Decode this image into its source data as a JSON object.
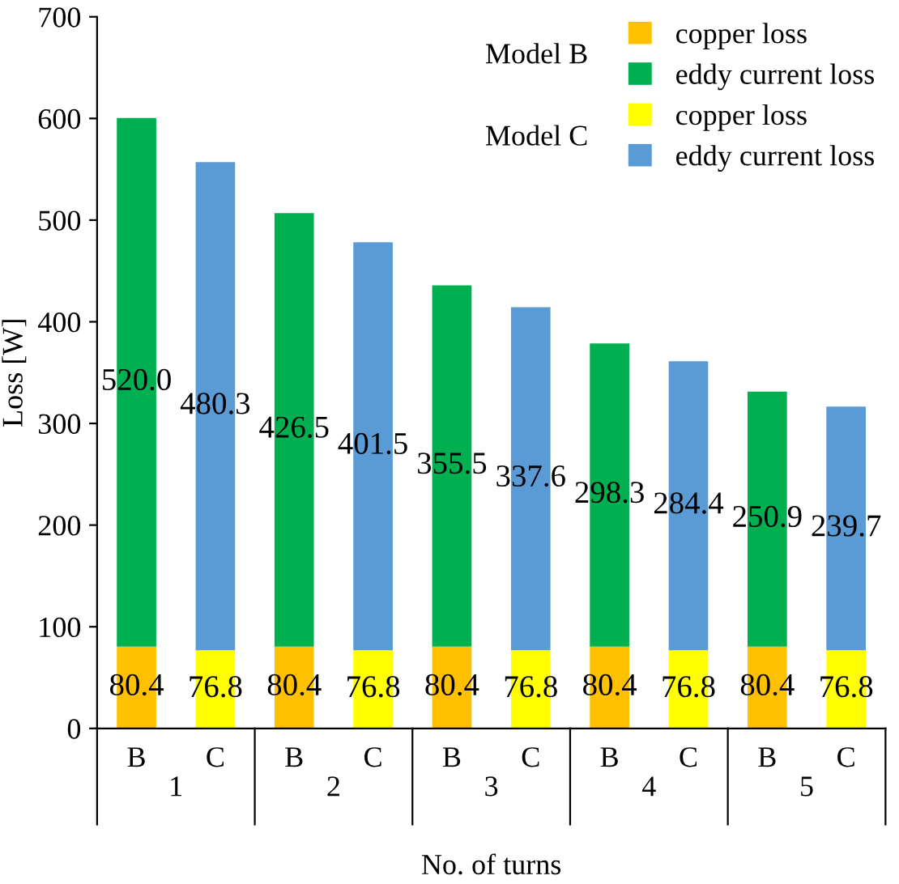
{
  "chart_data": {
    "type": "bar",
    "stacked": true,
    "xlabel": "No. of turns",
    "ylabel": "Loss [W]",
    "categories": [
      "B",
      "C",
      "B",
      "C",
      "B",
      "C",
      "B",
      "C",
      "B",
      "C"
    ],
    "annotations": [
      "Model B",
      "Model C",
      "1",
      "2",
      "3",
      "4",
      "5"
    ],
    "series": [
      {
        "name": "copper loss",
        "color": "#ffc000",
        "values": [
          80.4,
          null,
          80.4,
          null,
          80.4,
          null,
          80.4,
          null,
          80.4,
          null
        ],
        "value_labels": [
          "80.4",
          null,
          "80.4",
          null,
          "80.4",
          null,
          "80.4",
          null,
          "80.4",
          null
        ]
      },
      {
        "name": "eddy current loss",
        "color": "#00b050",
        "values": [
          520.0,
          null,
          426.5,
          null,
          355.5,
          null,
          298.3,
          null,
          250.9,
          null
        ],
        "value_labels": [
          "520.0",
          null,
          "426.5",
          null,
          "355.5",
          null,
          "298.3",
          null,
          "250.9",
          null
        ]
      },
      {
        "name": "copper loss",
        "color": "#ffff00",
        "values": [
          null,
          76.8,
          null,
          76.8,
          null,
          76.8,
          null,
          76.8,
          null,
          76.8
        ],
        "value_labels": [
          null,
          "76.8",
          null,
          "76.8",
          null,
          "76.8",
          null,
          "76.8",
          null,
          "76.8"
        ]
      },
      {
        "name": "eddy current loss",
        "color": "#5b9bd5",
        "values": [
          null,
          480.3,
          null,
          401.5,
          null,
          337.6,
          null,
          284.4,
          null,
          239.7
        ],
        "value_labels": [
          null,
          "480.3",
          null,
          "401.5",
          null,
          "337.6",
          null,
          "284.4",
          null,
          "239.7"
        ]
      }
    ],
    "ylim": [
      0,
      700
    ],
    "yticks": [
      0,
      100,
      200,
      300,
      400,
      500,
      600,
      700
    ],
    "grid": false,
    "legend": "top right"
  }
}
